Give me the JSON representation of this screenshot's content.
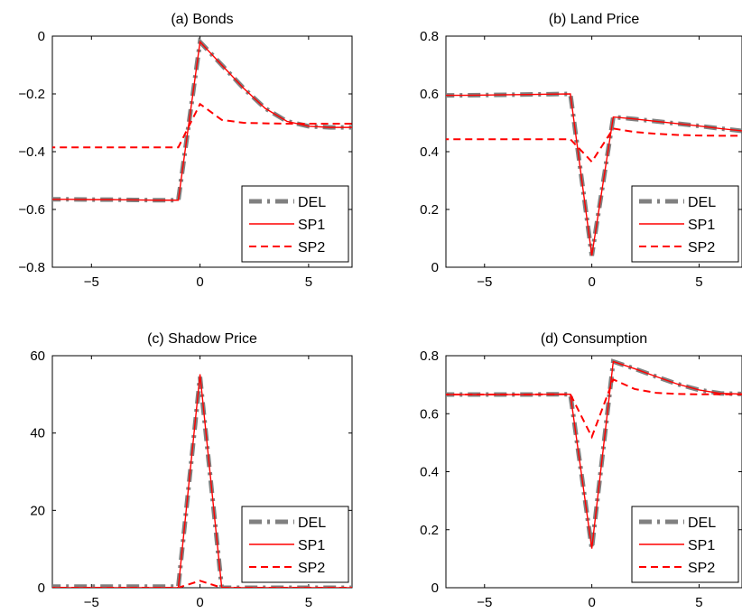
{
  "chart_data": [
    {
      "type": "line",
      "title": "(a) Bonds",
      "xlim": [
        -6.8,
        7
      ],
      "ylim": [
        -0.8,
        0
      ],
      "xticks": [
        -5,
        0,
        5
      ],
      "yticks": [
        -0.8,
        -0.6,
        -0.4,
        -0.2,
        0
      ],
      "xtick_labels": [
        "−5",
        "0",
        "5"
      ],
      "ytick_labels": [
        "−0.8",
        "−0.6",
        "−0.4",
        "−0.2",
        "0"
      ],
      "x": [
        -7,
        -6,
        -5,
        -4,
        -3,
        -2,
        -1,
        0,
        1,
        2,
        3,
        4,
        5,
        6,
        7
      ],
      "series": [
        {
          "name": "DEL",
          "color": "#808080",
          "style": "dashdot-thick",
          "values": [
            -0.565,
            -0.565,
            -0.566,
            -0.566,
            -0.567,
            -0.568,
            -0.568,
            -0.02,
            -0.1,
            -0.18,
            -0.25,
            -0.295,
            -0.312,
            -0.316,
            -0.316
          ]
        },
        {
          "name": "SP1",
          "color": "#ff0000",
          "style": "solid",
          "values": [
            -0.565,
            -0.565,
            -0.566,
            -0.566,
            -0.567,
            -0.568,
            -0.568,
            -0.02,
            -0.1,
            -0.18,
            -0.25,
            -0.295,
            -0.312,
            -0.316,
            -0.316
          ]
        },
        {
          "name": "SP2",
          "color": "#ff0000",
          "style": "dashed",
          "values": [
            -0.385,
            -0.385,
            -0.385,
            -0.385,
            -0.385,
            -0.385,
            -0.385,
            -0.235,
            -0.29,
            -0.3,
            -0.302,
            -0.303,
            -0.303,
            -0.303,
            -0.303
          ]
        }
      ],
      "legend": [
        "DEL",
        "SP1",
        "SP2"
      ],
      "legend_position": "bottom-right"
    },
    {
      "type": "line",
      "title": "(b) Land Price",
      "xlim": [
        -6.8,
        7
      ],
      "ylim": [
        0,
        0.8
      ],
      "xticks": [
        -5,
        0,
        5
      ],
      "yticks": [
        0,
        0.2,
        0.4,
        0.6,
        0.8
      ],
      "xtick_labels": [
        "−5",
        "0",
        "5"
      ],
      "ytick_labels": [
        "0",
        "0.2",
        "0.4",
        "0.6",
        "0.8"
      ],
      "x": [
        -7,
        -6,
        -5,
        -4,
        -3,
        -2,
        -1,
        0,
        1,
        2,
        3,
        4,
        5,
        6,
        7
      ],
      "series": [
        {
          "name": "DEL",
          "color": "#808080",
          "style": "dashdot-thick",
          "values": [
            0.595,
            0.595,
            0.596,
            0.597,
            0.598,
            0.599,
            0.6,
            0.04,
            0.52,
            0.513,
            0.505,
            0.497,
            0.489,
            0.48,
            0.472
          ]
        },
        {
          "name": "SP1",
          "color": "#ff0000",
          "style": "solid",
          "values": [
            0.595,
            0.595,
            0.596,
            0.597,
            0.598,
            0.599,
            0.6,
            0.04,
            0.52,
            0.513,
            0.505,
            0.497,
            0.489,
            0.48,
            0.472
          ]
        },
        {
          "name": "SP2",
          "color": "#ff0000",
          "style": "dashed",
          "values": [
            0.443,
            0.443,
            0.443,
            0.443,
            0.443,
            0.443,
            0.443,
            0.365,
            0.48,
            0.468,
            0.462,
            0.458,
            0.456,
            0.455,
            0.455
          ]
        }
      ],
      "legend": [
        "DEL",
        "SP1",
        "SP2"
      ],
      "legend_position": "bottom-right"
    },
    {
      "type": "line",
      "title": "(c) Shadow Price",
      "xlim": [
        -6.8,
        7
      ],
      "ylim": [
        0,
        60
      ],
      "xticks": [
        -5,
        0,
        5
      ],
      "yticks": [
        0,
        20,
        40,
        60
      ],
      "xtick_labels": [
        "−5",
        "0",
        "5"
      ],
      "ytick_labels": [
        "0",
        "20",
        "40",
        "60"
      ],
      "x": [
        -7,
        -6,
        -5,
        -4,
        -3,
        -2,
        -1,
        0,
        1,
        2,
        3,
        4,
        5,
        6,
        7
      ],
      "series": [
        {
          "name": "DEL",
          "color": "#808080",
          "style": "dashdot-thick",
          "values": [
            0.3,
            0.3,
            0.3,
            0.3,
            0.3,
            0.3,
            0.3,
            54.5,
            0,
            0,
            0,
            0,
            0,
            0,
            0
          ]
        },
        {
          "name": "SP1",
          "color": "#ff0000",
          "style": "solid",
          "values": [
            0,
            0,
            0,
            0,
            0,
            0,
            0,
            55.2,
            0,
            0,
            0,
            0,
            0,
            0,
            0
          ]
        },
        {
          "name": "SP2",
          "color": "#ff0000",
          "style": "dashed",
          "values": [
            0,
            0,
            0,
            0,
            0,
            0,
            0,
            1.8,
            0,
            0,
            0,
            0,
            0,
            0,
            0
          ]
        }
      ],
      "legend": [
        "DEL",
        "SP1",
        "SP2"
      ],
      "legend_position": "bottom-right"
    },
    {
      "type": "line",
      "title": "(d) Consumption",
      "xlim": [
        -6.8,
        7
      ],
      "ylim": [
        0,
        0.8
      ],
      "xticks": [
        -5,
        0,
        5
      ],
      "yticks": [
        0,
        0.2,
        0.4,
        0.6,
        0.8
      ],
      "xtick_labels": [
        "−5",
        "0",
        "5"
      ],
      "ytick_labels": [
        "0",
        "0.2",
        "0.4",
        "0.6",
        "0.8"
      ],
      "x": [
        -7,
        -6,
        -5,
        -4,
        -3,
        -2,
        -1,
        0,
        1,
        2,
        3,
        4,
        5,
        6,
        7
      ],
      "series": [
        {
          "name": "DEL",
          "color": "#808080",
          "style": "dashdot-thick",
          "values": [
            0.666,
            0.666,
            0.666,
            0.666,
            0.666,
            0.667,
            0.667,
            0.135,
            0.78,
            0.755,
            0.728,
            0.702,
            0.682,
            0.67,
            0.668
          ]
        },
        {
          "name": "SP1",
          "color": "#ff0000",
          "style": "solid",
          "values": [
            0.666,
            0.666,
            0.666,
            0.666,
            0.666,
            0.667,
            0.667,
            0.135,
            0.78,
            0.755,
            0.728,
            0.702,
            0.682,
            0.67,
            0.668
          ]
        },
        {
          "name": "SP2",
          "color": "#ff0000",
          "style": "dashed",
          "values": [
            0.666,
            0.666,
            0.666,
            0.666,
            0.666,
            0.667,
            0.667,
            0.52,
            0.718,
            0.685,
            0.672,
            0.668,
            0.667,
            0.667,
            0.667
          ]
        }
      ],
      "legend": [
        "DEL",
        "SP1",
        "SP2"
      ],
      "legend_position": "bottom-right"
    }
  ]
}
